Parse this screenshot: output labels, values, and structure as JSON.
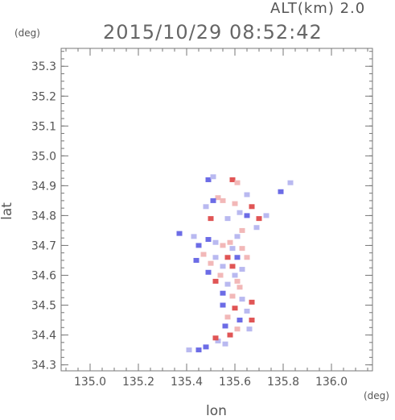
{
  "header": {
    "altitude_label": "ALT(km) 2.0",
    "timestamp": "2015/10/29 08:52:42"
  },
  "axes": {
    "y_unit": "(deg)",
    "x_unit": "(deg)",
    "y_label": "lat",
    "x_label": "lon"
  },
  "chart_data": {
    "type": "heatmap",
    "title": "2015/10/29 08:52:42",
    "subtitle": "ALT(km) 2.0",
    "xlabel": "lon",
    "ylabel": "lat",
    "x_unit": "(deg)",
    "y_unit": "(deg)",
    "xlim": [
      134.88,
      136.17
    ],
    "ylim": [
      34.28,
      35.36
    ],
    "x_ticks": [
      "135.0",
      "135.2",
      "135.4",
      "135.6",
      "135.8",
      "136.0"
    ],
    "y_ticks": [
      "34.3",
      "34.4",
      "34.5",
      "34.6",
      "34.7",
      "34.8",
      "34.9",
      "35.0",
      "35.1",
      "35.2",
      "35.3"
    ],
    "grid": false,
    "colors": {
      "positive": "#e05555",
      "negative": "#6c6ce6",
      "light_positive": "#f2b8b8",
      "light_negative": "#b9b9f0"
    },
    "cells": [
      {
        "lon": 135.49,
        "lat": 34.92,
        "v": -1
      },
      {
        "lon": 135.51,
        "lat": 34.93,
        "v": -0.5
      },
      {
        "lon": 135.59,
        "lat": 34.92,
        "v": 1
      },
      {
        "lon": 135.61,
        "lat": 34.91,
        "v": 0.6
      },
      {
        "lon": 135.83,
        "lat": 34.91,
        "v": -0.6
      },
      {
        "lon": 135.79,
        "lat": 34.88,
        "v": -1
      },
      {
        "lon": 135.65,
        "lat": 34.87,
        "v": -0.5
      },
      {
        "lon": 135.53,
        "lat": 34.86,
        "v": 0.5
      },
      {
        "lon": 135.51,
        "lat": 34.85,
        "v": -1
      },
      {
        "lon": 135.55,
        "lat": 34.85,
        "v": 0.4
      },
      {
        "lon": 135.48,
        "lat": 34.83,
        "v": -0.5
      },
      {
        "lon": 135.6,
        "lat": 34.84,
        "v": 0.5
      },
      {
        "lon": 135.67,
        "lat": 34.83,
        "v": 1
      },
      {
        "lon": 135.62,
        "lat": 34.81,
        "v": -0.5
      },
      {
        "lon": 135.65,
        "lat": 34.8,
        "v": -1
      },
      {
        "lon": 135.57,
        "lat": 34.79,
        "v": -0.6
      },
      {
        "lon": 135.5,
        "lat": 34.79,
        "v": 1
      },
      {
        "lon": 135.7,
        "lat": 34.79,
        "v": 1
      },
      {
        "lon": 135.73,
        "lat": 34.8,
        "v": -0.5
      },
      {
        "lon": 135.69,
        "lat": 34.76,
        "v": -0.4
      },
      {
        "lon": 135.63,
        "lat": 34.75,
        "v": 0.4
      },
      {
        "lon": 135.61,
        "lat": 34.73,
        "v": -0.5
      },
      {
        "lon": 135.49,
        "lat": 34.72,
        "v": -1
      },
      {
        "lon": 135.52,
        "lat": 34.71,
        "v": -0.4
      },
      {
        "lon": 135.45,
        "lat": 34.7,
        "v": -1
      },
      {
        "lon": 135.55,
        "lat": 34.7,
        "v": 0.5
      },
      {
        "lon": 135.59,
        "lat": 34.69,
        "v": -0.5
      },
      {
        "lon": 135.63,
        "lat": 34.69,
        "v": 0.4
      },
      {
        "lon": 135.47,
        "lat": 34.67,
        "v": 0.6
      },
      {
        "lon": 135.52,
        "lat": 34.66,
        "v": -0.4
      },
      {
        "lon": 135.57,
        "lat": 34.66,
        "v": 1
      },
      {
        "lon": 135.61,
        "lat": 34.66,
        "v": -1
      },
      {
        "lon": 135.65,
        "lat": 34.66,
        "v": 0.5
      },
      {
        "lon": 135.44,
        "lat": 34.65,
        "v": -1
      },
      {
        "lon": 135.5,
        "lat": 34.64,
        "v": 0.5
      },
      {
        "lon": 135.55,
        "lat": 34.63,
        "v": -0.4
      },
      {
        "lon": 135.59,
        "lat": 34.63,
        "v": 1
      },
      {
        "lon": 135.63,
        "lat": 34.62,
        "v": -0.5
      },
      {
        "lon": 135.49,
        "lat": 34.61,
        "v": -1
      },
      {
        "lon": 135.54,
        "lat": 34.6,
        "v": 0.5
      },
      {
        "lon": 135.6,
        "lat": 34.6,
        "v": -0.5
      },
      {
        "lon": 135.52,
        "lat": 34.58,
        "v": 1
      },
      {
        "lon": 135.57,
        "lat": 34.57,
        "v": -0.4
      },
      {
        "lon": 135.62,
        "lat": 34.56,
        "v": 0.4
      },
      {
        "lon": 135.55,
        "lat": 34.54,
        "v": -1
      },
      {
        "lon": 135.59,
        "lat": 34.53,
        "v": 0.5
      },
      {
        "lon": 135.63,
        "lat": 34.52,
        "v": -0.5
      },
      {
        "lon": 135.67,
        "lat": 34.51,
        "v": 1
      },
      {
        "lon": 135.55,
        "lat": 34.5,
        "v": -1
      },
      {
        "lon": 135.6,
        "lat": 34.49,
        "v": 1
      },
      {
        "lon": 135.65,
        "lat": 34.48,
        "v": -0.6
      },
      {
        "lon": 135.57,
        "lat": 34.46,
        "v": 0.5
      },
      {
        "lon": 135.62,
        "lat": 34.45,
        "v": -1
      },
      {
        "lon": 135.67,
        "lat": 34.45,
        "v": 1
      },
      {
        "lon": 135.56,
        "lat": 34.43,
        "v": -1
      },
      {
        "lon": 135.61,
        "lat": 34.42,
        "v": 0.4
      },
      {
        "lon": 135.66,
        "lat": 34.42,
        "v": -0.5
      },
      {
        "lon": 135.58,
        "lat": 34.4,
        "v": 1
      },
      {
        "lon": 135.53,
        "lat": 34.38,
        "v": -0.5
      },
      {
        "lon": 135.56,
        "lat": 34.37,
        "v": -0.4
      },
      {
        "lon": 135.52,
        "lat": 34.39,
        "v": 1
      },
      {
        "lon": 135.48,
        "lat": 34.36,
        "v": -1
      },
      {
        "lon": 135.45,
        "lat": 34.35,
        "v": -1
      },
      {
        "lon": 135.41,
        "lat": 34.35,
        "v": -0.5
      },
      {
        "lon": 135.37,
        "lat": 34.74,
        "v": -1
      },
      {
        "lon": 135.43,
        "lat": 34.73,
        "v": -0.5
      },
      {
        "lon": 135.61,
        "lat": 34.58,
        "v": 0.6
      },
      {
        "lon": 135.58,
        "lat": 34.71,
        "v": 0.6
      }
    ]
  }
}
